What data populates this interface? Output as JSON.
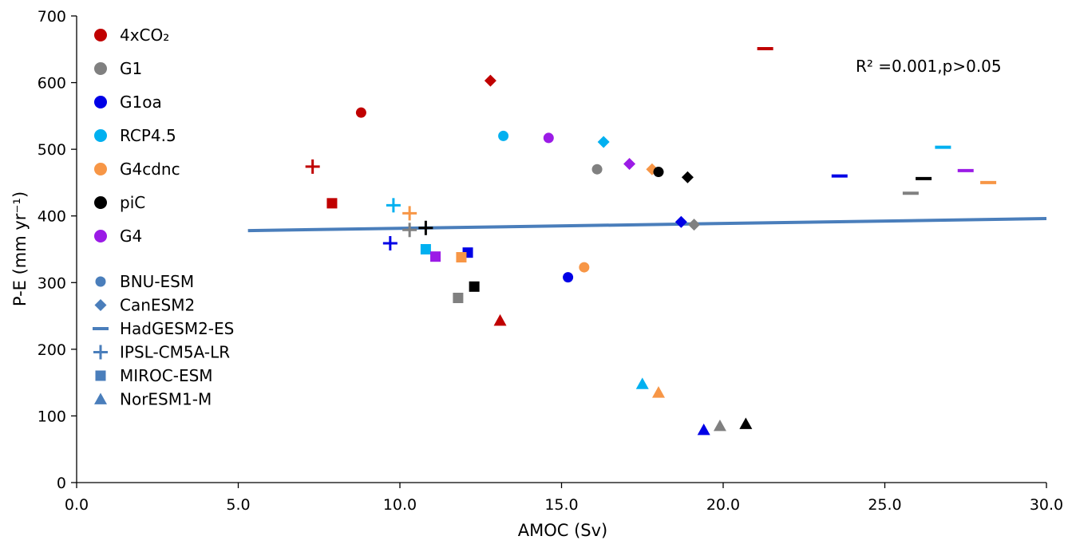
{
  "chart_data": {
    "type": "scatter",
    "xlabel": "AMOC (Sv)",
    "ylabel": "P-E (mm yr⁻¹)",
    "xlim": [
      0,
      30
    ],
    "ylim": [
      0,
      700
    ],
    "x_ticks": [
      "0.0",
      "5.0",
      "10.0",
      "15.0",
      "20.0",
      "25.0",
      "30.0"
    ],
    "y_ticks": [
      "0",
      "100",
      "200",
      "300",
      "400",
      "500",
      "600",
      "700"
    ],
    "grid": false,
    "annotation": "R² =0.001,p>0.05",
    "trendline": {
      "x": [
        5.3,
        30
      ],
      "y": [
        378,
        396
      ],
      "color": "#4a7ebb"
    },
    "scenarios": [
      {
        "name": "4xCO₂",
        "color": "#c00000"
      },
      {
        "name": "G1",
        "color": "#808080"
      },
      {
        "name": "G1oa",
        "color": "#0000e6"
      },
      {
        "name": "RCP4.5",
        "color": "#00b0f0"
      },
      {
        "name": "G4cdnc",
        "color": "#f79646"
      },
      {
        "name": "piC",
        "color": "#000000"
      },
      {
        "name": "G4",
        "color": "#9b1be6"
      }
    ],
    "models": [
      {
        "name": "BNU-ESM",
        "marker": "circle"
      },
      {
        "name": "CanESM2",
        "marker": "diamond"
      },
      {
        "name": "HadGESM2-ES",
        "marker": "dash"
      },
      {
        "name": "IPSL-CM5A-LR",
        "marker": "plus"
      },
      {
        "name": "MIROC-ESM",
        "marker": "square"
      },
      {
        "name": "NorESM1-M",
        "marker": "triangle"
      }
    ],
    "legend_color": "#4a7ebb",
    "legend_position": "upper-left",
    "points": [
      {
        "scenario": "4xCO₂",
        "model": "BNU-ESM",
        "x": 8.8,
        "y": 555
      },
      {
        "scenario": "4xCO₂",
        "model": "CanESM2",
        "x": 12.8,
        "y": 603
      },
      {
        "scenario": "4xCO₂",
        "model": "HadGESM2-ES",
        "x": 21.3,
        "y": 651
      },
      {
        "scenario": "4xCO₂",
        "model": "IPSL-CM5A-LR",
        "x": 7.3,
        "y": 474
      },
      {
        "scenario": "4xCO₂",
        "model": "MIROC-ESM",
        "x": 7.9,
        "y": 419
      },
      {
        "scenario": "4xCO₂",
        "model": "NorESM1-M",
        "x": 13.1,
        "y": 243
      },
      {
        "scenario": "G1",
        "model": "BNU-ESM",
        "x": 16.1,
        "y": 470
      },
      {
        "scenario": "G1",
        "model": "CanESM2",
        "x": 19.1,
        "y": 387
      },
      {
        "scenario": "G1",
        "model": "HadGESM2-ES",
        "x": 25.8,
        "y": 434
      },
      {
        "scenario": "G1",
        "model": "IPSL-CM5A-LR",
        "x": 10.3,
        "y": 379
      },
      {
        "scenario": "G1",
        "model": "MIROC-ESM",
        "x": 11.8,
        "y": 277
      },
      {
        "scenario": "G1",
        "model": "NorESM1-M",
        "x": 19.9,
        "y": 85
      },
      {
        "scenario": "G1oa",
        "model": "BNU-ESM",
        "x": 15.2,
        "y": 308
      },
      {
        "scenario": "G1oa",
        "model": "CanESM2",
        "x": 18.7,
        "y": 391
      },
      {
        "scenario": "G1oa",
        "model": "HadGESM2-ES",
        "x": 23.6,
        "y": 460
      },
      {
        "scenario": "G1oa",
        "model": "IPSL-CM5A-LR",
        "x": 9.7,
        "y": 359
      },
      {
        "scenario": "G1oa",
        "model": "MIROC-ESM",
        "x": 12.1,
        "y": 345
      },
      {
        "scenario": "G1oa",
        "model": "NorESM1-M",
        "x": 19.4,
        "y": 79
      },
      {
        "scenario": "RCP4.5",
        "model": "BNU-ESM",
        "x": 13.2,
        "y": 520
      },
      {
        "scenario": "RCP4.5",
        "model": "CanESM2",
        "x": 16.3,
        "y": 511
      },
      {
        "scenario": "RCP4.5",
        "model": "HadGESM2-ES",
        "x": 26.8,
        "y": 503
      },
      {
        "scenario": "RCP4.5",
        "model": "IPSL-CM5A-LR",
        "x": 9.8,
        "y": 416
      },
      {
        "scenario": "RCP4.5",
        "model": "MIROC-ESM",
        "x": 10.8,
        "y": 350
      },
      {
        "scenario": "RCP4.5",
        "model": "NorESM1-M",
        "x": 17.5,
        "y": 148
      },
      {
        "scenario": "G4cdnc",
        "model": "BNU-ESM",
        "x": 15.7,
        "y": 323
      },
      {
        "scenario": "G4cdnc",
        "model": "CanESM2",
        "x": 17.8,
        "y": 470
      },
      {
        "scenario": "G4cdnc",
        "model": "HadGESM2-ES",
        "x": 28.2,
        "y": 450
      },
      {
        "scenario": "G4cdnc",
        "model": "IPSL-CM5A-LR",
        "x": 10.3,
        "y": 404
      },
      {
        "scenario": "G4cdnc",
        "model": "MIROC-ESM",
        "x": 11.9,
        "y": 338
      },
      {
        "scenario": "G4cdnc",
        "model": "NorESM1-M",
        "x": 18.0,
        "y": 135
      },
      {
        "scenario": "piC",
        "model": "BNU-ESM",
        "x": 18.0,
        "y": 466
      },
      {
        "scenario": "piC",
        "model": "CanESM2",
        "x": 18.9,
        "y": 458
      },
      {
        "scenario": "piC",
        "model": "HadGESM2-ES",
        "x": 26.2,
        "y": 456
      },
      {
        "scenario": "piC",
        "model": "IPSL-CM5A-LR",
        "x": 10.8,
        "y": 382
      },
      {
        "scenario": "piC",
        "model": "MIROC-ESM",
        "x": 12.3,
        "y": 294
      },
      {
        "scenario": "piC",
        "model": "NorESM1-M",
        "x": 20.7,
        "y": 88
      },
      {
        "scenario": "G4",
        "model": "BNU-ESM",
        "x": 14.6,
        "y": 517
      },
      {
        "scenario": "G4",
        "model": "CanESM2",
        "x": 17.1,
        "y": 478
      },
      {
        "scenario": "G4",
        "model": "HadGESM2-ES",
        "x": 27.5,
        "y": 468
      },
      {
        "scenario": "G4",
        "model": "MIROC-ESM",
        "x": 11.1,
        "y": 339
      }
    ]
  }
}
